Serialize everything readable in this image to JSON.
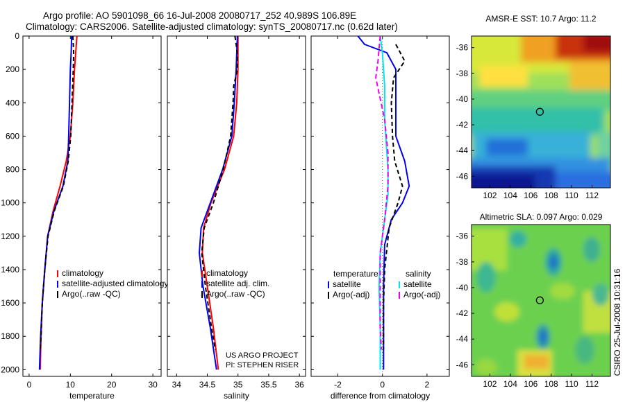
{
  "header": {
    "line1": "Argo profile: AO 5901098_66 16-Jul-2008 20080717_252 40.989S 106.89E",
    "line2": "Climatology: CARS2006. Satellite-adjusted climatology: synTS_20080717.nc (0.62d later)"
  },
  "side_text": "CSIRO 25-Jul-2008 10:31:16",
  "credit": [
    "US ARGO PROJECT",
    "PI: STEPHEN RISER"
  ],
  "colors": {
    "climatology": "#ff0000",
    "satellite": "#0000ee",
    "argo": "#000000",
    "sat_salinity": "#00e5ee",
    "argo_adj_salinity": "#ee00ee"
  },
  "chart_data": [
    {
      "id": "temperature",
      "type": "line",
      "xlabel": "temperature",
      "xlim": [
        -1.5,
        32
      ],
      "ylim": [
        2040,
        0
      ],
      "xticks": [
        0,
        10,
        20,
        30
      ],
      "yticks": [
        0,
        200,
        400,
        600,
        800,
        1000,
        1200,
        1400,
        1600,
        1800,
        2000
      ],
      "legend": [
        "climatology",
        "satellite-adjusted climatology",
        "Argo(..raw -QC)"
      ],
      "series": [
        {
          "name": "climatology",
          "color": "#ff0000",
          "dash": "none",
          "points": [
            [
              11.6,
              0
            ],
            [
              11.3,
              100
            ],
            [
              11.0,
              200
            ],
            [
              10.6,
              400
            ],
            [
              10.0,
              600
            ],
            [
              9.0,
              750
            ],
            [
              7.5,
              900
            ],
            [
              5.8,
              1050
            ],
            [
              4.5,
              1200
            ],
            [
              3.8,
              1400
            ],
            [
              3.2,
              1600
            ],
            [
              2.9,
              1800
            ],
            [
              2.7,
              2000
            ]
          ]
        },
        {
          "name": "satellite-adjusted climatology",
          "color": "#0000ee",
          "dash": "none",
          "points": [
            [
              10.3,
              0
            ],
            [
              10.2,
              100
            ],
            [
              10.0,
              200
            ],
            [
              9.8,
              400
            ],
            [
              9.6,
              600
            ],
            [
              9.4,
              750
            ],
            [
              8.2,
              900
            ],
            [
              6.0,
              1050
            ],
            [
              4.5,
              1200
            ],
            [
              3.8,
              1400
            ],
            [
              3.2,
              1600
            ],
            [
              2.8,
              1800
            ],
            [
              2.5,
              2000
            ]
          ]
        },
        {
          "name": "Argo(..raw -QC)",
          "color": "#000000",
          "dash": "6,4",
          "points": [
            [
              10.6,
              0
            ],
            [
              10.8,
              100
            ],
            [
              10.7,
              200
            ],
            [
              10.4,
              400
            ],
            [
              10.1,
              600
            ],
            [
              9.5,
              750
            ],
            [
              8.3,
              900
            ],
            [
              6.1,
              1050
            ],
            [
              4.6,
              1200
            ],
            [
              3.8,
              1400
            ],
            [
              3.2,
              1600
            ],
            [
              2.9,
              1800
            ],
            [
              2.7,
              1880
            ]
          ]
        }
      ]
    },
    {
      "id": "salinity",
      "type": "line",
      "xlabel": "salinity",
      "xlim": [
        33.85,
        36.1
      ],
      "ylim": [
        2040,
        0
      ],
      "xticks": [
        34,
        34.5,
        35,
        35.5,
        36
      ],
      "xticklabels": [
        "34",
        "34.5",
        "35",
        "35.5",
        "36"
      ],
      "legend": [
        "climatology",
        "satellite adj. clim.",
        "Argo(..raw -QC)"
      ],
      "series": [
        {
          "name": "climatology",
          "color": "#ff0000",
          "dash": "none",
          "points": [
            [
              35.0,
              0
            ],
            [
              35.0,
              200
            ],
            [
              34.98,
              400
            ],
            [
              34.93,
              600
            ],
            [
              34.78,
              800
            ],
            [
              34.56,
              1000
            ],
            [
              34.44,
              1150
            ],
            [
              34.42,
              1300
            ],
            [
              34.5,
              1500
            ],
            [
              34.6,
              1750
            ],
            [
              34.68,
              2000
            ]
          ]
        },
        {
          "name": "satellite adj. clim.",
          "color": "#0000ee",
          "dash": "none",
          "points": [
            [
              34.99,
              0
            ],
            [
              34.98,
              100
            ],
            [
              34.97,
              200
            ],
            [
              34.94,
              400
            ],
            [
              34.9,
              600
            ],
            [
              34.75,
              800
            ],
            [
              34.55,
              1000
            ],
            [
              34.4,
              1150
            ],
            [
              34.37,
              1300
            ],
            [
              34.43,
              1500
            ],
            [
              34.55,
              1750
            ],
            [
              34.65,
              2000
            ]
          ]
        },
        {
          "name": "Argo(..raw -QC)",
          "color": "#000000",
          "dash": "6,4",
          "points": [
            [
              34.95,
              0
            ],
            [
              34.99,
              100
            ],
            [
              34.99,
              200
            ],
            [
              34.93,
              300
            ],
            [
              34.92,
              400
            ],
            [
              34.88,
              600
            ],
            [
              34.76,
              800
            ],
            [
              34.6,
              1000
            ],
            [
              34.45,
              1150
            ],
            [
              34.41,
              1300
            ],
            [
              34.47,
              1500
            ],
            [
              34.57,
              1750
            ],
            [
              34.63,
              1880
            ]
          ]
        }
      ]
    },
    {
      "id": "difference",
      "type": "line",
      "xlabel": "difference from climatology",
      "xlim": [
        -3.2,
        3.0
      ],
      "ylim": [
        2040,
        0
      ],
      "xticks": [
        -2,
        0,
        2
      ],
      "legend_temperature_title": "temperature",
      "legend_salinity_title": "salinity",
      "legend_temperature": [
        "satellite",
        "Argo(-adj)"
      ],
      "legend_salinity": [
        "satellite",
        "Argo(-adj)"
      ],
      "series": [
        {
          "name": "temperature satellite",
          "color": "#0000ee",
          "dash": "none",
          "points": [
            [
              -1.1,
              0
            ],
            [
              -0.8,
              50
            ],
            [
              0.2,
              100
            ],
            [
              0.6,
              200
            ],
            [
              0.6,
              400
            ],
            [
              0.6,
              600
            ],
            [
              1.0,
              750
            ],
            [
              1.2,
              900
            ],
            [
              0.9,
              1000
            ],
            [
              0.4,
              1100
            ],
            [
              0.1,
              1250
            ],
            [
              0.05,
              1500
            ],
            [
              0.05,
              2000
            ]
          ]
        },
        {
          "name": "temperature Argo(-adj)",
          "color": "#000000",
          "dash": "6,4",
          "points": [
            [
              0.6,
              50
            ],
            [
              1.0,
              150
            ],
            [
              0.5,
              250
            ],
            [
              0.4,
              400
            ],
            [
              0.45,
              600
            ],
            [
              0.55,
              750
            ],
            [
              0.9,
              900
            ],
            [
              0.7,
              1000
            ],
            [
              0.3,
              1150
            ],
            [
              0.1,
              1400
            ],
            [
              0.05,
              1600
            ],
            [
              0.05,
              1880
            ]
          ]
        },
        {
          "name": "salinity satellite",
          "color": "#00e5ee",
          "dash": "none",
          "points": [
            [
              -0.1,
              0
            ],
            [
              0.0,
              100
            ],
            [
              0.1,
              300
            ],
            [
              0.1,
              500
            ],
            [
              0.2,
              700
            ],
            [
              0.25,
              800
            ],
            [
              0.25,
              950
            ],
            [
              0.1,
              1100
            ],
            [
              -0.1,
              1300
            ],
            [
              -0.15,
              1500
            ],
            [
              -0.1,
              1750
            ],
            [
              -0.1,
              2000
            ]
          ]
        },
        {
          "name": "salinity Argo(-adj)",
          "color": "#ee00ee",
          "dash": "7,4",
          "points": [
            [
              -0.1,
              0
            ],
            [
              -0.2,
              150
            ],
            [
              -0.3,
              250
            ],
            [
              0.1,
              500
            ],
            [
              0.25,
              700
            ],
            [
              0.25,
              900
            ],
            [
              0.1,
              1100
            ],
            [
              -0.1,
              1300
            ],
            [
              -0.1,
              1500
            ],
            [
              -0.1,
              1750
            ],
            [
              -0.05,
              1880
            ]
          ]
        }
      ]
    },
    {
      "id": "sst-map",
      "type": "heatmap",
      "title": "AMSR-E SST: 10.7 Argo: 11.2",
      "xlim": [
        100.2,
        113.8
      ],
      "ylim": [
        -46.9,
        -35.1
      ],
      "xticks": [
        102,
        104,
        106,
        108,
        110,
        112
      ],
      "yticks": [
        -36,
        -38,
        -40,
        -42,
        -44,
        -46
      ],
      "marker": {
        "lon": 106.89,
        "lat": -40.989
      }
    },
    {
      "id": "sla-map",
      "type": "heatmap",
      "title": "Altimetric SLA: 0.097 Argo: 0.029",
      "xlim": [
        100.2,
        113.8
      ],
      "ylim": [
        -46.9,
        -35.1
      ],
      "xticks": [
        102,
        104,
        106,
        108,
        110,
        112
      ],
      "yticks": [
        -36,
        -38,
        -40,
        -42,
        -44,
        -46
      ],
      "marker": {
        "lon": 106.89,
        "lat": -40.989
      }
    }
  ]
}
